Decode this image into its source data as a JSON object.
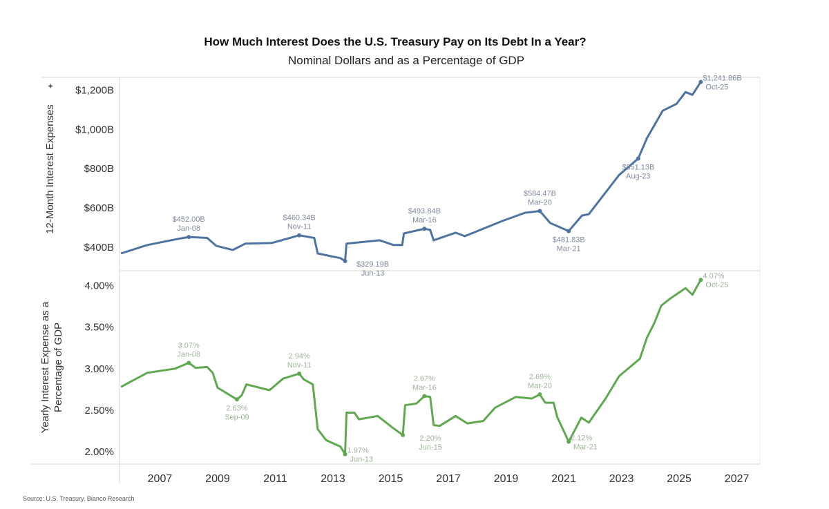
{
  "chart_data": [
    {
      "type": "line",
      "title": "How Much Interest Does the U.S. Treasury Pay on Its Debt In a Year?",
      "subtitle": "Nominal Dollars and as a Percentage of GDP",
      "ylabel": "12-Month Interest Expenses",
      "yticks": [
        400,
        600,
        800,
        1000,
        1200
      ],
      "ytick_labels": [
        "$400B",
        "$600B",
        "$800B",
        "$1,000B",
        "$1,200B"
      ],
      "ylim": [
        280,
        1265
      ],
      "xlim": [
        2005.6,
        2027.8
      ],
      "color": "#4d74a0",
      "annotation_color": "#7f8a9e",
      "grid": false,
      "series": [
        {
          "points": [
            [
              2005.65,
              368
            ],
            [
              2006.56,
              411
            ],
            [
              2007.52,
              439
            ],
            [
              2008.0,
              452
            ],
            [
              2008.64,
              447
            ],
            [
              2008.95,
              407
            ],
            [
              2009.53,
              386
            ],
            [
              2009.96,
              418
            ],
            [
              2010.87,
              421
            ],
            [
              2011.83,
              460.34
            ],
            [
              2012.35,
              447
            ],
            [
              2012.47,
              368
            ],
            [
              2013.26,
              344
            ],
            [
              2013.42,
              329.19
            ],
            [
              2013.47,
              418
            ],
            [
              2014.62,
              435
            ],
            [
              2015.1,
              411
            ],
            [
              2015.4,
              411
            ],
            [
              2015.46,
              470
            ],
            [
              2016.17,
              493.84
            ],
            [
              2016.37,
              488
            ],
            [
              2016.49,
              435
            ],
            [
              2017.25,
              474
            ],
            [
              2017.57,
              456
            ],
            [
              2018.86,
              533
            ],
            [
              2019.65,
              575
            ],
            [
              2020.17,
              584.47
            ],
            [
              2020.53,
              523
            ],
            [
              2021.17,
              481.83
            ],
            [
              2021.63,
              561
            ],
            [
              2021.87,
              568
            ],
            [
              2022.92,
              768
            ],
            [
              2023.58,
              851.13
            ],
            [
              2023.88,
              954
            ],
            [
              2024.43,
              1095
            ],
            [
              2024.91,
              1130
            ],
            [
              2025.22,
              1190
            ],
            [
              2025.46,
              1176
            ],
            [
              2025.75,
              1241.86
            ]
          ]
        }
      ],
      "annotations": [
        {
          "x": 2008.0,
          "y": 452.0,
          "value": "$452.00B",
          "date": "Jan-08",
          "placement": "above"
        },
        {
          "x": 2011.83,
          "y": 460.34,
          "value": "$460.34B",
          "date": "Nov-11",
          "placement": "above"
        },
        {
          "x": 2013.42,
          "y": 329.19,
          "value": "$329.19B",
          "date": "Jun-13",
          "placement": "right-below"
        },
        {
          "x": 2016.17,
          "y": 493.84,
          "value": "$493.84B",
          "date": "Mar-16",
          "placement": "above"
        },
        {
          "x": 2020.17,
          "y": 584.47,
          "value": "$584.47B",
          "date": "Mar-20",
          "placement": "above"
        },
        {
          "x": 2021.17,
          "y": 481.83,
          "value": "$481.83B",
          "date": "Mar-21",
          "placement": "below"
        },
        {
          "x": 2023.58,
          "y": 851.13,
          "value": "$851.13B",
          "date": "Aug-23",
          "placement": "below"
        },
        {
          "x": 2025.75,
          "y": 1241.86,
          "value": "$1,241.86B",
          "date": "Oct-25",
          "placement": "right"
        }
      ]
    },
    {
      "type": "line",
      "ylabel": "Yearly Interest Expense as a Percentage of GDP",
      "ylabel_lines": [
        "Yearly Interest Expense as a",
        "Percentage of GDP"
      ],
      "yticks": [
        2.0,
        2.5,
        3.0,
        3.5,
        4.0
      ],
      "ytick_labels": [
        "2.00%",
        "2.50%",
        "3.00%",
        "3.50%",
        "4.00%"
      ],
      "ylim": [
        1.85,
        4.18
      ],
      "xlim": [
        2005.6,
        2027.8
      ],
      "xticks": [
        2007,
        2009,
        2011,
        2013,
        2015,
        2017,
        2019,
        2021,
        2023,
        2025,
        2027
      ],
      "xtick_labels": [
        "2007",
        "2009",
        "2011",
        "2013",
        "2015",
        "2017",
        "2019",
        "2021",
        "2023",
        "2025",
        "2027"
      ],
      "color": "#5fa84f",
      "annotation_color": "#9fb59a",
      "grid": false,
      "series": [
        {
          "points": [
            [
              2005.65,
              2.78
            ],
            [
              2006.56,
              2.95
            ],
            [
              2007.52,
              3.0
            ],
            [
              2008.0,
              3.07
            ],
            [
              2008.24,
              3.01
            ],
            [
              2008.64,
              3.02
            ],
            [
              2008.83,
              2.95
            ],
            [
              2009.0,
              2.77
            ],
            [
              2009.67,
              2.63
            ],
            [
              2009.84,
              2.68
            ],
            [
              2010.0,
              2.81
            ],
            [
              2010.8,
              2.74
            ],
            [
              2011.27,
              2.88
            ],
            [
              2011.83,
              2.94
            ],
            [
              2011.99,
              2.87
            ],
            [
              2012.3,
              2.81
            ],
            [
              2012.47,
              2.27
            ],
            [
              2012.76,
              2.14
            ],
            [
              2013.26,
              2.06
            ],
            [
              2013.42,
              1.97
            ],
            [
              2013.47,
              2.47
            ],
            [
              2013.74,
              2.47
            ],
            [
              2013.9,
              2.39
            ],
            [
              2014.55,
              2.43
            ],
            [
              2015.1,
              2.28
            ],
            [
              2015.42,
              2.2
            ],
            [
              2015.5,
              2.56
            ],
            [
              2015.89,
              2.58
            ],
            [
              2016.17,
              2.67
            ],
            [
              2016.37,
              2.66
            ],
            [
              2016.49,
              2.32
            ],
            [
              2016.7,
              2.31
            ],
            [
              2017.25,
              2.43
            ],
            [
              2017.66,
              2.34
            ],
            [
              2018.21,
              2.37
            ],
            [
              2018.62,
              2.53
            ],
            [
              2019.34,
              2.66
            ],
            [
              2019.89,
              2.64
            ],
            [
              2020.17,
              2.69
            ],
            [
              2020.36,
              2.59
            ],
            [
              2020.65,
              2.59
            ],
            [
              2020.77,
              2.42
            ],
            [
              2021.17,
              2.12
            ],
            [
              2021.61,
              2.41
            ],
            [
              2021.87,
              2.35
            ],
            [
              2022.45,
              2.64
            ],
            [
              2022.92,
              2.91
            ],
            [
              2023.64,
              3.12
            ],
            [
              2023.88,
              3.37
            ],
            [
              2024.14,
              3.55
            ],
            [
              2024.38,
              3.76
            ],
            [
              2024.67,
              3.84
            ],
            [
              2025.22,
              3.97
            ],
            [
              2025.46,
              3.89
            ],
            [
              2025.75,
              4.07
            ]
          ]
        }
      ],
      "annotations": [
        {
          "x": 2008.0,
          "y": 3.07,
          "value": "3.07%",
          "date": "Jan-08",
          "placement": "above"
        },
        {
          "x": 2009.67,
          "y": 2.63,
          "value": "2.63%",
          "date": "Sep-09",
          "placement": "below"
        },
        {
          "x": 2011.83,
          "y": 2.94,
          "value": "2.94%",
          "date": "Nov-11",
          "placement": "above"
        },
        {
          "x": 2013.42,
          "y": 1.97,
          "value": "1.97%",
          "date": "Jun-13",
          "placement": "right"
        },
        {
          "x": 2015.42,
          "y": 2.2,
          "value": "2.20%",
          "date": "Jun-15",
          "placement": "right-below"
        },
        {
          "x": 2016.17,
          "y": 2.67,
          "value": "2.67%",
          "date": "Mar-16",
          "placement": "above"
        },
        {
          "x": 2020.17,
          "y": 2.69,
          "value": "2.69%",
          "date": "Mar-20",
          "placement": "above"
        },
        {
          "x": 2021.17,
          "y": 2.12,
          "value": "2.12%",
          "date": "Mar-21",
          "placement": "right"
        },
        {
          "x": 2025.75,
          "y": 4.07,
          "value": "4.07%",
          "date": "Oct-25",
          "placement": "right"
        }
      ]
    }
  ],
  "source": "Source: U.S. Treasury, Bianco Research",
  "icons": {
    "pin": "pin-icon"
  }
}
